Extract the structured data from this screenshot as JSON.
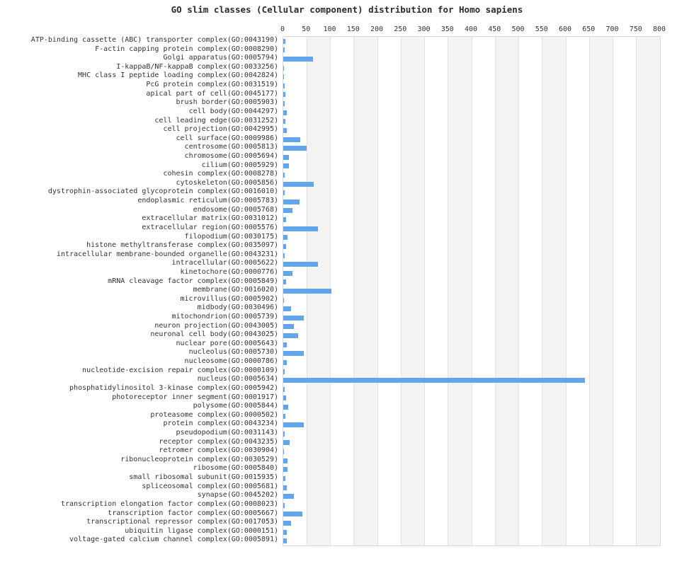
{
  "chart_data": {
    "type": "bar",
    "orientation": "horizontal",
    "title": "GO slim classes (Cellular component) distribution for Homo sapiens",
    "xlabel": "",
    "ylabel": "",
    "xlim": [
      0,
      800
    ],
    "x_ticks": [
      0,
      50,
      100,
      150,
      200,
      250,
      300,
      350,
      400,
      450,
      500,
      550,
      600,
      650,
      700,
      750,
      800
    ],
    "grid": "vertical-bands",
    "legend": "none",
    "bar_color": "#61a6ed",
    "band_colors": [
      "#ffffff",
      "#f3f3f3"
    ],
    "gridline_color": "#e3e3e3",
    "categories": [
      "ATP-binding cassette (ABC) transporter complex(GO:0043190)",
      "F-actin capping protein complex(GO:0008290)",
      "Golgi apparatus(GO:0005794)",
      "I-kappaB/NF-kappaB complex(GO:0033256)",
      "MHC class I peptide loading complex(GO:0042824)",
      "PcG protein complex(GO:0031519)",
      "apical part of cell(GO:0045177)",
      "brush border(GO:0005903)",
      "cell body(GO:0044297)",
      "cell leading edge(GO:0031252)",
      "cell projection(GO:0042995)",
      "cell surface(GO:0009986)",
      "centrosome(GO:0005813)",
      "chromosome(GO:0005694)",
      "cilium(GO:0005929)",
      "cohesin complex(GO:0008278)",
      "cytoskeleton(GO:0005856)",
      "dystrophin-associated glycoprotein complex(GO:0016010)",
      "endoplasmic reticulum(GO:0005783)",
      "endosome(GO:0005768)",
      "extracellular matrix(GO:0031012)",
      "extracellular region(GO:0005576)",
      "filopodium(GO:0030175)",
      "histone methyltransferase complex(GO:0035097)",
      "intracellular membrane-bounded organelle(GO:0043231)",
      "intracellular(GO:0005622)",
      "kinetochore(GO:0000776)",
      "mRNA cleavage factor complex(GO:0005849)",
      "membrane(GO:0016020)",
      "microvillus(GO:0005902)",
      "midbody(GO:0030496)",
      "mitochondrion(GO:0005739)",
      "neuron projection(GO:0043005)",
      "neuronal cell body(GO:0043025)",
      "nuclear pore(GO:0005643)",
      "nucleolus(GO:0005730)",
      "nucleosome(GO:0000786)",
      "nucleotide-excision repair complex(GO:0000109)",
      "nucleus(GO:0005634)",
      "phosphatidylinositol 3-kinase complex(GO:0005942)",
      "photoreceptor inner segment(GO:0001917)",
      "polysome(GO:0005844)",
      "proteasome complex(GO:0000502)",
      "protein complex(GO:0043234)",
      "pseudopodium(GO:0031143)",
      "receptor complex(GO:0043235)",
      "retromer complex(GO:0030904)",
      "ribonucleoprotein complex(GO:0030529)",
      "ribosome(GO:0005840)",
      "small ribosomal subunit(GO:0015935)",
      "spliceosomal complex(GO:0005681)",
      "synapse(GO:0045202)",
      "transcription elongation factor complex(GO:0008023)",
      "transcription factor complex(GO:0005667)",
      "transcriptional repressor complex(GO:0017053)",
      "ubiquitin ligase complex(GO:0000151)",
      "voltage-gated calcium channel complex(GO:0005891)"
    ],
    "values": [
      4,
      3,
      63,
      2,
      2,
      3,
      5,
      3,
      7,
      5,
      8,
      36,
      50,
      12,
      12,
      3,
      65,
      3,
      35,
      19,
      6,
      74,
      9,
      6,
      3,
      74,
      20,
      6,
      102,
      2,
      16,
      44,
      22,
      31,
      8,
      44,
      7,
      3,
      640,
      3,
      6,
      11,
      4,
      44,
      3,
      13,
      2,
      9,
      9,
      4,
      8,
      22,
      3,
      41,
      16,
      7,
      7
    ]
  }
}
